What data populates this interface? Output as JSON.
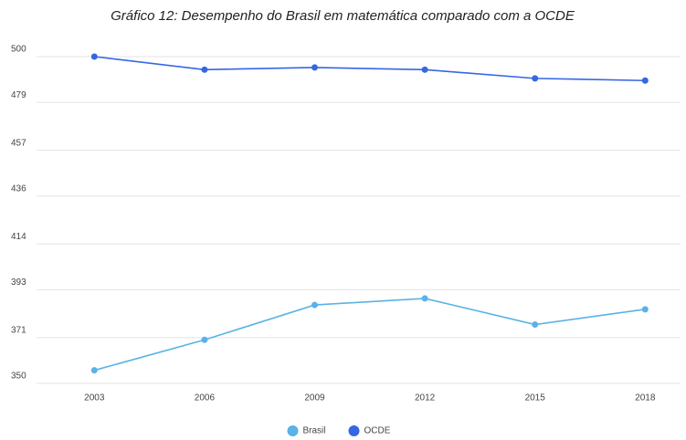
{
  "chart_data": {
    "type": "line",
    "title": "Gráfico 12: Desempenho do Brasil em matemática comparado com a OCDE",
    "categories": [
      "2003",
      "2006",
      "2009",
      "2012",
      "2015",
      "2018"
    ],
    "series": [
      {
        "name": "Brasil",
        "color": "#5ab2e6",
        "values": [
          356,
          370,
          386,
          389,
          377,
          384
        ]
      },
      {
        "name": "OCDE",
        "color": "#3567e3",
        "values": [
          500,
          494,
          495,
          494,
          490,
          489
        ]
      }
    ],
    "ylim": [
      350,
      500
    ],
    "yticks": [
      350,
      371,
      393,
      414,
      436,
      457,
      479,
      500
    ],
    "grid": true,
    "legend": "bottom"
  }
}
